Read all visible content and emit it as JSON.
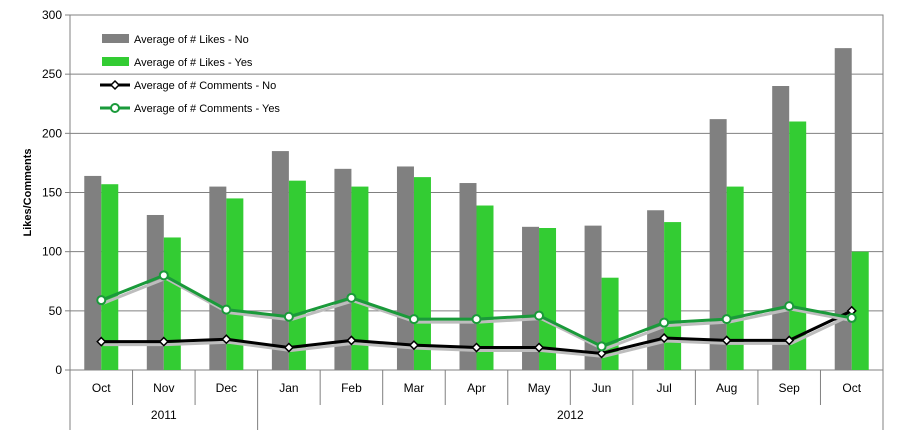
{
  "chart_data": {
    "type": "bar",
    "title": "",
    "xlabel": "",
    "ylabel": "Likes/Comments",
    "ylim": [
      0,
      300
    ],
    "yticks": [
      0,
      50,
      100,
      150,
      200,
      250,
      300
    ],
    "grid": true,
    "legend_position": "top-left",
    "categories": [
      "Oct",
      "Nov",
      "Dec",
      "Jan",
      "Feb",
      "Mar",
      "Apr",
      "May",
      "Jun",
      "Jul",
      "Aug",
      "Sep",
      "Oct"
    ],
    "year_groups": [
      {
        "label": "2011",
        "count": 3
      },
      {
        "label": "2012",
        "count": 10
      }
    ],
    "series": [
      {
        "name": "Average of # Likes - No",
        "kind": "bar",
        "color": "#808080",
        "values": [
          164,
          131,
          155,
          185,
          170,
          172,
          158,
          121,
          122,
          135,
          212,
          240,
          272
        ]
      },
      {
        "name": "Average of # Likes - Yes",
        "kind": "bar",
        "color": "#33cc33",
        "values": [
          157,
          112,
          145,
          160,
          155,
          163,
          139,
          120,
          78,
          125,
          155,
          210,
          100
        ]
      },
      {
        "name": "Average of # Comments - No",
        "kind": "line",
        "color": "#000000",
        "marker": "diamond",
        "values": [
          24,
          24,
          26,
          19,
          25,
          21,
          19,
          19,
          14,
          27,
          25,
          25,
          50
        ]
      },
      {
        "name": "Average of # Comments - Yes",
        "kind": "line",
        "color": "#1a9a3a",
        "marker": "circle",
        "values": [
          59,
          80,
          51,
          45,
          61,
          43,
          43,
          46,
          20,
          40,
          43,
          54,
          44
        ]
      }
    ]
  }
}
